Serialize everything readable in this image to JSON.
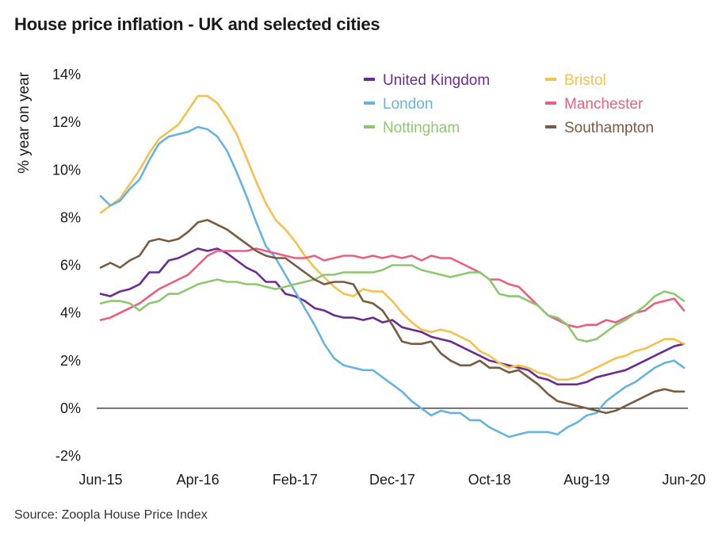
{
  "title": "House price inflation - UK and selected cities",
  "source": "Source: Zoopla House Price Index",
  "chart_data": {
    "type": "line",
    "ylabel": "% year on year",
    "xlabel": "",
    "ylim": [
      -2,
      14
    ],
    "y_ticks": [
      -2,
      0,
      2,
      4,
      6,
      8,
      10,
      12,
      14
    ],
    "y_tick_labels": [
      "-2%",
      "0%",
      "2%",
      "4%",
      "6%",
      "8%",
      "10%",
      "12%",
      "14%"
    ],
    "x_tick_labels": [
      "Jun-15",
      "Apr-16",
      "Feb-17",
      "Dec-17",
      "Oct-18",
      "Aug-19",
      "Jun-20"
    ],
    "x_tick_positions": [
      0,
      10,
      20,
      30,
      40,
      50,
      60
    ],
    "x_range": [
      0,
      60
    ],
    "zero_line": true,
    "legend_position": "top-right",
    "series": [
      {
        "name": "United Kingdom",
        "color": "#6a2c91",
        "values": [
          4.8,
          4.7,
          4.9,
          5.0,
          5.2,
          5.7,
          5.7,
          6.2,
          6.3,
          6.5,
          6.7,
          6.6,
          6.7,
          6.5,
          6.2,
          5.9,
          5.7,
          5.3,
          5.3,
          4.8,
          4.7,
          4.5,
          4.2,
          4.1,
          3.9,
          3.8,
          3.8,
          3.7,
          3.8,
          3.6,
          3.7,
          3.4,
          3.3,
          3.2,
          3.0,
          2.9,
          2.8,
          2.6,
          2.4,
          2.2,
          2.0,
          1.9,
          1.8,
          1.7,
          1.6,
          1.3,
          1.2,
          1.0,
          1.0,
          1.0,
          1.1,
          1.3,
          1.4,
          1.5,
          1.6,
          1.8,
          2.0,
          2.2,
          2.4,
          2.6,
          2.7
        ]
      },
      {
        "name": "Bristol",
        "color": "#f2c14e",
        "values": [
          8.2,
          8.5,
          8.8,
          9.4,
          10.0,
          10.7,
          11.3,
          11.6,
          11.9,
          12.5,
          13.1,
          13.1,
          12.8,
          12.2,
          11.5,
          10.5,
          9.5,
          8.6,
          7.9,
          7.5,
          7.0,
          6.4,
          5.9,
          5.5,
          5.1,
          4.8,
          4.7,
          5.0,
          4.9,
          4.9,
          4.5,
          4.0,
          3.6,
          3.3,
          3.2,
          3.3,
          3.2,
          3.0,
          2.8,
          2.4,
          2.2,
          1.9,
          1.7,
          1.8,
          1.7,
          1.5,
          1.4,
          1.2,
          1.2,
          1.3,
          1.5,
          1.7,
          1.9,
          2.1,
          2.2,
          2.4,
          2.5,
          2.7,
          2.9,
          2.9,
          2.7
        ]
      },
      {
        "name": "London",
        "color": "#66b3e0",
        "values": [
          8.9,
          8.5,
          8.7,
          9.2,
          9.6,
          10.4,
          11.1,
          11.4,
          11.5,
          11.6,
          11.8,
          11.7,
          11.4,
          10.8,
          9.9,
          8.9,
          7.8,
          6.8,
          6.3,
          5.6,
          4.9,
          4.2,
          3.5,
          2.7,
          2.1,
          1.8,
          1.7,
          1.6,
          1.6,
          1.3,
          1.0,
          0.7,
          0.3,
          0.0,
          -0.3,
          -0.1,
          -0.2,
          -0.2,
          -0.5,
          -0.5,
          -0.8,
          -1.0,
          -1.2,
          -1.1,
          -1.0,
          -1.0,
          -1.0,
          -1.1,
          -0.8,
          -0.6,
          -0.3,
          -0.2,
          0.3,
          0.6,
          0.9,
          1.1,
          1.4,
          1.7,
          1.9,
          2.0,
          1.7
        ]
      },
      {
        "name": "Manchester",
        "color": "#e8607e",
        "values": [
          3.7,
          3.8,
          4.0,
          4.2,
          4.4,
          4.7,
          5.0,
          5.2,
          5.4,
          5.6,
          6.0,
          6.4,
          6.6,
          6.6,
          6.6,
          6.6,
          6.7,
          6.6,
          6.5,
          6.4,
          6.3,
          6.3,
          6.4,
          6.2,
          6.3,
          6.4,
          6.4,
          6.3,
          6.4,
          6.3,
          6.4,
          6.3,
          6.4,
          6.2,
          6.4,
          6.3,
          6.3,
          6.1,
          5.9,
          5.7,
          5.4,
          5.4,
          5.2,
          5.1,
          4.7,
          4.3,
          3.9,
          3.7,
          3.5,
          3.4,
          3.5,
          3.5,
          3.7,
          3.6,
          3.8,
          4.0,
          4.1,
          4.4,
          4.5,
          4.6,
          4.1
        ]
      },
      {
        "name": "Nottingham",
        "color": "#8dc86e",
        "values": [
          4.4,
          4.5,
          4.5,
          4.4,
          4.1,
          4.4,
          4.5,
          4.8,
          4.8,
          5.0,
          5.2,
          5.3,
          5.4,
          5.3,
          5.3,
          5.2,
          5.2,
          5.1,
          5.0,
          5.1,
          5.2,
          5.3,
          5.4,
          5.6,
          5.6,
          5.7,
          5.7,
          5.7,
          5.7,
          5.8,
          6.0,
          6.0,
          6.0,
          5.8,
          5.7,
          5.6,
          5.5,
          5.6,
          5.7,
          5.7,
          5.4,
          4.8,
          4.7,
          4.7,
          4.5,
          4.3,
          3.9,
          3.8,
          3.5,
          2.9,
          2.8,
          2.9,
          3.2,
          3.5,
          3.7,
          4.0,
          4.3,
          4.7,
          4.9,
          4.8,
          4.5
        ]
      },
      {
        "name": "Southampton",
        "color": "#7a5a40",
        "values": [
          5.9,
          6.1,
          5.9,
          6.2,
          6.4,
          7.0,
          7.1,
          7.0,
          7.1,
          7.4,
          7.8,
          7.9,
          7.7,
          7.5,
          7.2,
          6.9,
          6.6,
          6.4,
          6.3,
          6.3,
          6.0,
          5.7,
          5.4,
          5.2,
          5.3,
          5.3,
          5.2,
          4.5,
          4.4,
          4.1,
          3.5,
          2.8,
          2.7,
          2.7,
          2.8,
          2.3,
          2.0,
          1.8,
          1.8,
          2.0,
          1.7,
          1.7,
          1.5,
          1.6,
          1.3,
          1.0,
          0.6,
          0.3,
          0.2,
          0.1,
          0.0,
          -0.1,
          -0.2,
          -0.1,
          0.1,
          0.3,
          0.5,
          0.7,
          0.8,
          0.7,
          0.7
        ]
      }
    ]
  }
}
